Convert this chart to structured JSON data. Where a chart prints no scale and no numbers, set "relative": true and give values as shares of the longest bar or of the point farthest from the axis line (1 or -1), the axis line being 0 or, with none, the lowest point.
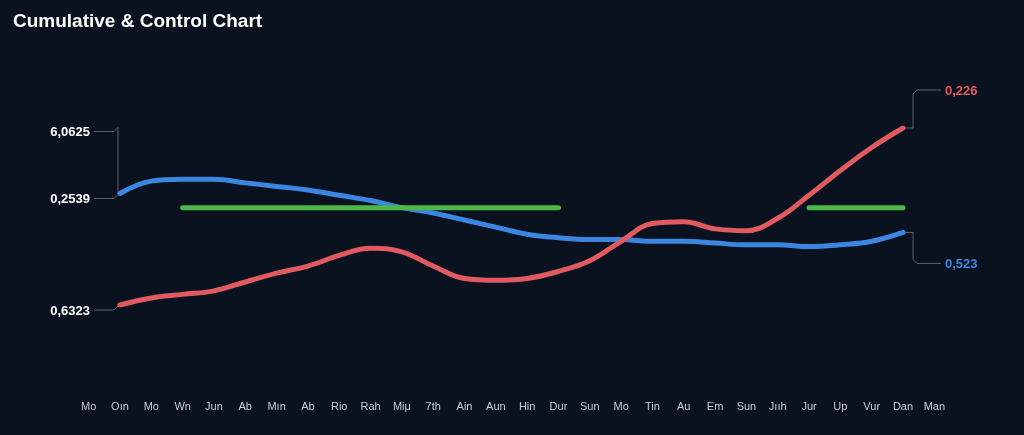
{
  "chart_data": {
    "type": "line",
    "title": "Cumulative & Control Chart",
    "relative": true,
    "marker": "none",
    "categories": [
      "Mo",
      "Oın",
      "Mo",
      "Wn",
      "Jun",
      "Ab",
      "Mın",
      "Ab",
      "Rio",
      "Rah",
      "Miμ",
      "7th",
      "Ain",
      "Aun",
      "Hin",
      "Dur",
      "Sun",
      "Mo",
      "Tin",
      "Au",
      "Em",
      "Sun",
      "Jııh",
      "Jur",
      "Up",
      "Vur",
      "Dan",
      "Man"
    ],
    "series": [
      {
        "color": "#3a86e0",
        "values": [
          null,
          0.63,
          0.7,
          0.71,
          0.71,
          0.69,
          0.67,
          0.65,
          0.62,
          0.59,
          0.55,
          0.52,
          0.48,
          0.44,
          0.4,
          0.38,
          0.37,
          0.37,
          0.36,
          0.36,
          0.35,
          0.34,
          0.34,
          0.33,
          0.34,
          0.36,
          0.41,
          null
        ]
      },
      {
        "color": "#e05a5f",
        "values": [
          null,
          0,
          0.04,
          0.06,
          0.08,
          0.13,
          0.18,
          0.22,
          0.28,
          0.32,
          0.3,
          0.22,
          0.15,
          0.14,
          0.15,
          0.19,
          0.25,
          0.36,
          0.46,
          0.47,
          0.43,
          0.42,
          0.49,
          0.62,
          0.76,
          0.89,
          1,
          null
        ]
      },
      {
        "color": "#4cb848",
        "values": [
          null,
          null,
          null,
          0.55,
          0.55,
          0.55,
          0.55,
          0.55,
          0.55,
          0.55,
          0.55,
          0.55,
          0.55,
          0.55,
          0.55,
          0.55,
          null,
          null,
          null,
          null,
          null,
          null,
          null,
          0.55,
          0.55,
          0.55,
          0.55,
          null
        ]
      }
    ],
    "annotations": [
      {
        "text": "6,0625",
        "x": "Oın",
        "y": 0.63
      },
      {
        "text": "0,2539",
        "x": "Oın",
        "y": 0.63
      },
      {
        "text": "0,6323",
        "x": "Oın",
        "y": 0
      },
      {
        "text": "0,226",
        "x": "Dan",
        "y": 1
      },
      {
        "text": "0,523",
        "x": "Dan",
        "y": 0.41
      }
    ]
  }
}
